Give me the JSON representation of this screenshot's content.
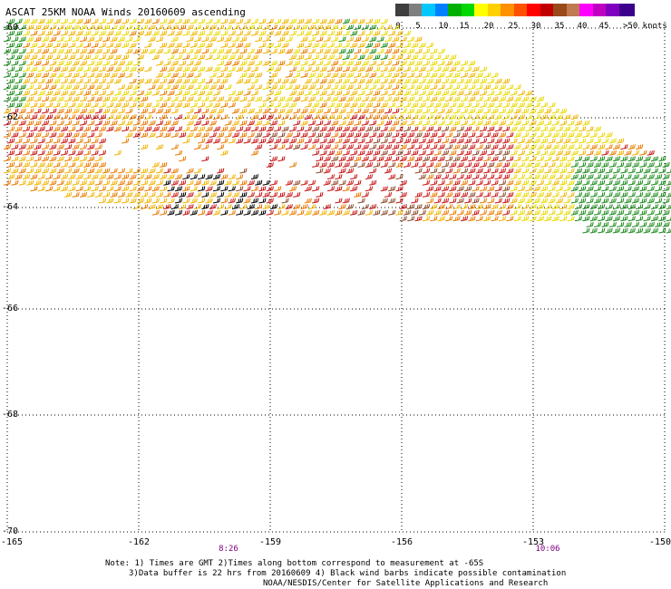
{
  "title": "ASCAT 25KM NOAA Winds 20160609 ascending",
  "legend": {
    "colors": [
      "#3f3f3f",
      "#7f7f7f",
      "#00c8ff",
      "#0080ff",
      "#00b000",
      "#00d800",
      "#ffff00",
      "#ffd000",
      "#ff9000",
      "#ff5000",
      "#ff0000",
      "#c00000",
      "#9a4a1a",
      "#c07a50",
      "#ff00ff",
      "#c000c0",
      "#8000c0",
      "#3c008c"
    ],
    "labels": [
      "0",
      "5",
      "10",
      "15",
      "20",
      "25",
      "30",
      "35",
      "40",
      "45",
      ">50 knots"
    ]
  },
  "latitude_labels": [
    "-60",
    "-62",
    "-64",
    "-66",
    "-68",
    "-70"
  ],
  "longitude_labels": [
    "-165",
    "-162",
    "-159",
    "-156",
    "-153",
    "-150"
  ],
  "time_labels": [
    "8:26",
    "10:06"
  ],
  "notes": [
    "Note: 1) Times are GMT 2)Times along bottom correspond to measurement at -65S",
    "3)Data buffer is 22 hrs from 20160609 4) Black wind barbs indicate possible contamination",
    "NOAA/NESDIS/Center for Satellite Applications and Research"
  ],
  "map": {
    "lat_range": [
      -70,
      -60
    ],
    "lon_range": [
      -165,
      -150
    ],
    "grid": "dotted",
    "wind_colors": {
      "green": "#1a8a1a",
      "yellow": "#e8d800",
      "gold": "#f0b400",
      "orange": "#e87a00",
      "red": "#c81414",
      "brown": "#8b4a2a",
      "black": "#000000"
    }
  }
}
